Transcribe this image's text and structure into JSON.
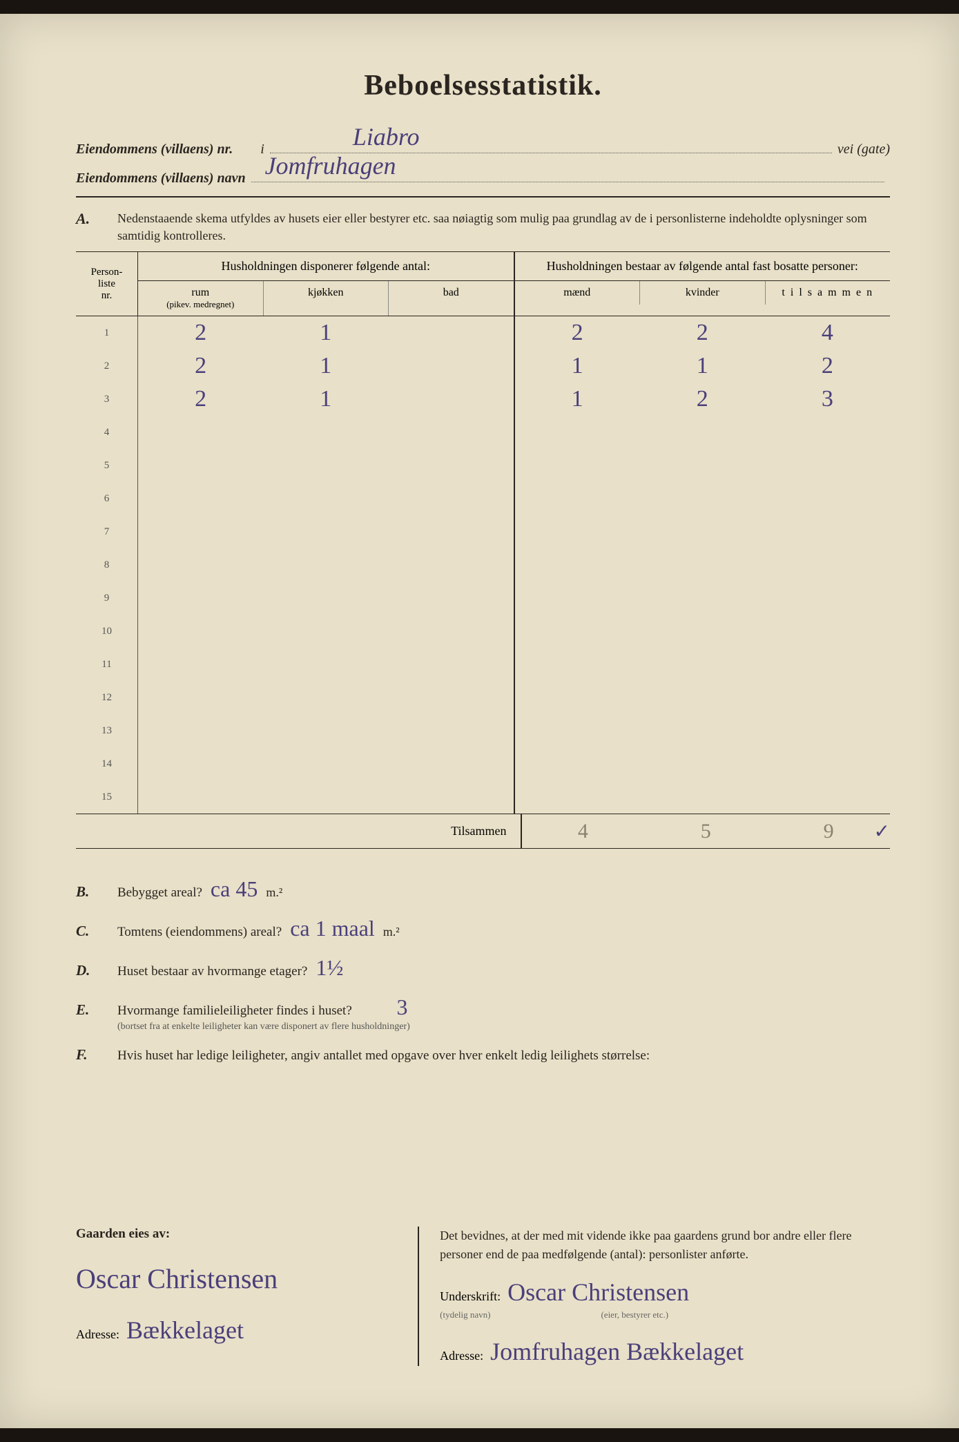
{
  "title": "Beboelsesstatistik.",
  "header": {
    "line1_label": "Eiendommens (villaens) nr.",
    "line1_mid": "i",
    "line1_value": "Liabro",
    "line1_suffix": "vei (gate)",
    "line2_label": "Eiendommens (villaens) navn",
    "line2_value": "Jomfruhagen"
  },
  "sectionA": {
    "letter": "A.",
    "text": "Nedenstaaende skema utfyldes av husets eier eller bestyrer etc. saa nøiagtig som mulig paa grundlag av de i personlisterne indeholdte oplysninger som samtidig kontrolleres."
  },
  "table": {
    "col_idx_label1": "Person-",
    "col_idx_label2": "liste",
    "col_idx_label3": "nr.",
    "left_header": "Husholdningen disponerer følgende antal:",
    "right_header": "Husholdningen bestaar av følgende antal fast bosatte personer:",
    "left_cols": [
      {
        "label": "rum",
        "sub": "(pikev. medregnet)"
      },
      {
        "label": "kjøkken",
        "sub": ""
      },
      {
        "label": "bad",
        "sub": ""
      }
    ],
    "right_cols": [
      {
        "label": "mænd"
      },
      {
        "label": "kvinder"
      },
      {
        "label": "t i l s a m m e n"
      }
    ],
    "rows": [
      {
        "idx": "1",
        "left": [
          "2",
          "1",
          ""
        ],
        "right": [
          "2",
          "2",
          "4"
        ]
      },
      {
        "idx": "2",
        "left": [
          "2",
          "1",
          ""
        ],
        "right": [
          "1",
          "1",
          "2"
        ]
      },
      {
        "idx": "3",
        "left": [
          "2",
          "1",
          ""
        ],
        "right": [
          "1",
          "2",
          "3"
        ]
      },
      {
        "idx": "4",
        "left": [
          "",
          "",
          ""
        ],
        "right": [
          "",
          "",
          ""
        ]
      },
      {
        "idx": "5",
        "left": [
          "",
          "",
          ""
        ],
        "right": [
          "",
          "",
          ""
        ]
      },
      {
        "idx": "6",
        "left": [
          "",
          "",
          ""
        ],
        "right": [
          "",
          "",
          ""
        ]
      },
      {
        "idx": "7",
        "left": [
          "",
          "",
          ""
        ],
        "right": [
          "",
          "",
          ""
        ]
      },
      {
        "idx": "8",
        "left": [
          "",
          "",
          ""
        ],
        "right": [
          "",
          "",
          ""
        ]
      },
      {
        "idx": "9",
        "left": [
          "",
          "",
          ""
        ],
        "right": [
          "",
          "",
          ""
        ]
      },
      {
        "idx": "10",
        "left": [
          "",
          "",
          ""
        ],
        "right": [
          "",
          "",
          ""
        ]
      },
      {
        "idx": "11",
        "left": [
          "",
          "",
          ""
        ],
        "right": [
          "",
          "",
          ""
        ]
      },
      {
        "idx": "12",
        "left": [
          "",
          "",
          ""
        ],
        "right": [
          "",
          "",
          ""
        ]
      },
      {
        "idx": "13",
        "left": [
          "",
          "",
          ""
        ],
        "right": [
          "",
          "",
          ""
        ]
      },
      {
        "idx": "14",
        "left": [
          "",
          "",
          ""
        ],
        "right": [
          "",
          "",
          ""
        ]
      },
      {
        "idx": "15",
        "left": [
          "",
          "",
          ""
        ],
        "right": [
          "",
          "",
          ""
        ]
      }
    ],
    "footer_label": "Tilsammen",
    "totals": [
      "4",
      "5",
      "9"
    ],
    "checkmark": "✓"
  },
  "questions": {
    "B": {
      "letter": "B.",
      "text": "Bebygget areal?",
      "ans": "ca 45",
      "unit": "m.²"
    },
    "C": {
      "letter": "C.",
      "text": "Tomtens (eiendommens) areal?",
      "ans": "ca 1 maal",
      "unit": "m.²"
    },
    "D": {
      "letter": "D.",
      "text": "Huset bestaar av hvormange etager?",
      "ans": "1½"
    },
    "E": {
      "letter": "E.",
      "text": "Hvormange familieleiligheter findes i huset?",
      "note": "(bortset fra at enkelte leiligheter kan være disponert av flere husholdninger)",
      "ans": "3"
    },
    "F": {
      "letter": "F.",
      "text": "Hvis huset har ledige leiligheter, angiv antallet med opgave over hver enkelt ledig leilighets størrelse:"
    }
  },
  "bottom": {
    "owner_label": "Gaarden eies av:",
    "owner_name": "Oscar Christensen",
    "owner_addr_label": "Adresse:",
    "owner_addr": "Bækkelaget",
    "attest": "Det bevidnes, at der med mit vidende ikke paa gaardens grund bor andre eller flere personer end de paa medfølgende (antal):                  personlister anførte.",
    "sign_label": "Underskrift:",
    "sign_note": "(tydelig navn)",
    "sign_role": "(eier, bestyrer etc.)",
    "sign_name": "Oscar Christensen",
    "addr_label": "Adresse:",
    "addr_value": "Jomfruhagen Bækkelaget"
  },
  "colors": {
    "paper": "#e8e0c8",
    "ink": "#2a2520",
    "handwriting": "#4a3f7a",
    "faint": "#8a8270"
  }
}
